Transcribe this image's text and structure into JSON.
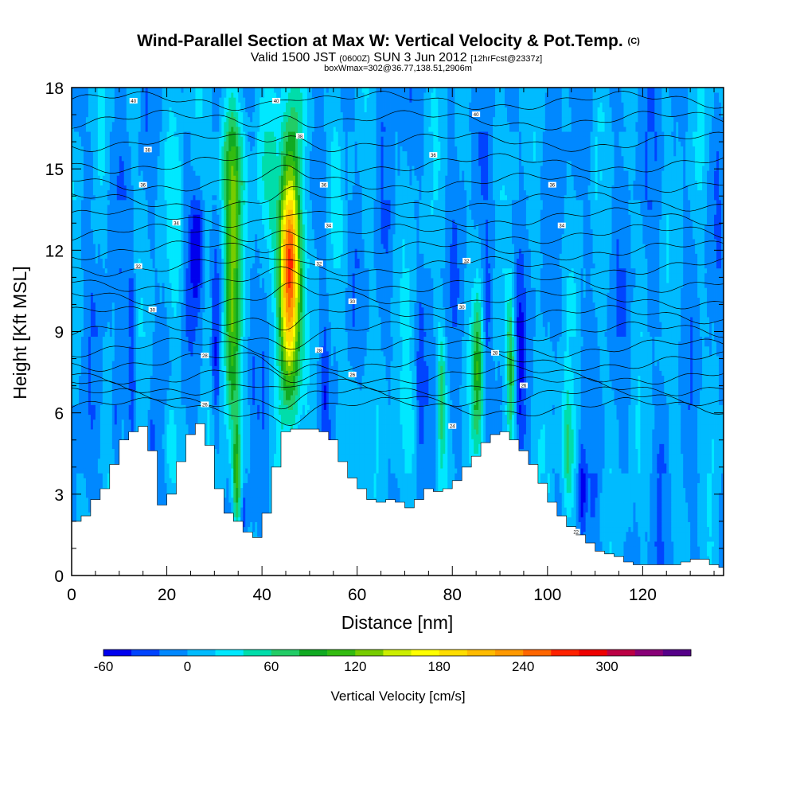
{
  "chart_data": {
    "type": "heatmap",
    "title_main": "Wind-Parallel Section at Max W: Vertical Velocity & Pot.Temp.",
    "title_mark": "(C)",
    "subtitle": {
      "valid_a": "Valid 1500 JST",
      "valid_z": "(0600Z)",
      "valid_b": "SUN 3 Jun 2012",
      "fcst": "[12hrFcst@2337z]",
      "box": "boxWmax=302@36.77,138.51,2906m"
    },
    "xlabel": "Distance [nm]",
    "ylabel": "Height [Kft MSL]",
    "xlim": [
      0,
      137
    ],
    "ylim": [
      0,
      18
    ],
    "xticks": [
      0,
      20,
      40,
      60,
      80,
      100,
      120
    ],
    "yticks": [
      0,
      3,
      6,
      9,
      12,
      15,
      18
    ],
    "colorbar": {
      "label": "Vertical Velocity [cm/s]",
      "ticks": [
        -60,
        0,
        60,
        120,
        180,
        240,
        300
      ],
      "levels": [
        -60,
        -40,
        -20,
        0,
        20,
        40,
        60,
        80,
        100,
        120,
        140,
        160,
        180,
        200,
        220,
        240,
        260,
        280,
        300,
        320,
        340
      ],
      "colors": [
        "#0000ee",
        "#0044ff",
        "#0088ff",
        "#00bbff",
        "#00e8ff",
        "#00ddaa",
        "#22cc66",
        "#11aa22",
        "#33bb11",
        "#77cc00",
        "#ccee00",
        "#ffff00",
        "#ffdd00",
        "#ffbb00",
        "#ff9900",
        "#ff6600",
        "#ff2200",
        "#ee0000",
        "#bb0044",
        "#880077",
        "#550088"
      ]
    },
    "background_w": 0,
    "terrain": {
      "x": [
        0,
        2,
        4,
        6,
        8,
        10,
        12,
        14,
        16,
        18,
        20,
        22,
        24,
        26,
        28,
        30,
        32,
        34,
        36,
        38,
        40,
        42,
        44,
        46,
        48,
        50,
        52,
        54,
        56,
        58,
        60,
        62,
        64,
        66,
        68,
        70,
        72,
        74,
        76,
        78,
        80,
        82,
        84,
        86,
        88,
        90,
        92,
        94,
        96,
        98,
        100,
        102,
        104,
        106,
        108,
        110,
        112,
        114,
        116,
        118,
        120,
        122,
        124,
        126,
        128,
        130,
        132,
        134,
        136
      ],
      "height_kft": [
        2.0,
        2.2,
        2.8,
        3.2,
        4.1,
        5.0,
        5.3,
        5.5,
        4.6,
        2.6,
        3.0,
        4.2,
        5.2,
        5.6,
        4.8,
        3.2,
        2.3,
        2.0,
        1.6,
        1.4,
        2.3,
        4.0,
        5.3,
        5.4,
        5.4,
        5.4,
        5.3,
        5.0,
        4.2,
        3.6,
        3.2,
        2.8,
        2.7,
        2.8,
        2.7,
        2.5,
        2.8,
        3.2,
        3.1,
        3.2,
        3.5,
        4.0,
        4.4,
        4.9,
        5.2,
        5.3,
        5.0,
        4.6,
        4.1,
        3.4,
        2.7,
        2.2,
        1.8,
        1.5,
        1.2,
        0.9,
        0.8,
        0.7,
        0.5,
        0.4,
        0.4,
        0.4,
        0.4,
        0.4,
        0.5,
        0.6,
        0.6,
        0.4,
        0.3
      ]
    },
    "w_features": [
      {
        "x": 45.5,
        "z": 11.2,
        "peak": 290,
        "sx": 1.5,
        "sz": 3.0
      },
      {
        "x": 33.5,
        "z": 10.5,
        "peak": 110,
        "sx": 1.2,
        "sz": 4.5
      },
      {
        "x": 33.0,
        "z": 15.0,
        "peak": 55,
        "sx": 2.5,
        "sz": 1.5
      },
      {
        "x": 48.0,
        "z": 17.0,
        "peak": 30,
        "sx": 3.0,
        "sz": 1.2
      },
      {
        "x": 34.5,
        "z": 3.6,
        "peak": 90,
        "sx": 0.6,
        "sz": 1.5
      },
      {
        "x": 85.0,
        "z": 7.5,
        "peak": 80,
        "sx": 0.9,
        "sz": 2.0
      },
      {
        "x": 92.0,
        "z": 7.5,
        "peak": 90,
        "sx": 0.6,
        "sz": 1.8
      },
      {
        "x": 77.5,
        "z": 6.5,
        "peak": 70,
        "sx": 0.6,
        "sz": 1.8
      },
      {
        "x": 104.0,
        "z": 4.2,
        "peak": 65,
        "sx": 0.9,
        "sz": 1.8
      },
      {
        "x": 20.0,
        "z": 4.8,
        "peak": 40,
        "sx": 1.0,
        "sz": 1.2
      },
      {
        "x": 59.0,
        "z": 6.0,
        "peak": 30,
        "sx": 1.5,
        "sz": 1.5
      },
      {
        "x": 70.0,
        "z": 5.0,
        "peak": 25,
        "sx": 2.0,
        "sz": 2.0
      },
      {
        "x": 41.0,
        "z": 14.5,
        "peak": 25,
        "sx": 1.5,
        "sz": 2.0
      },
      {
        "x": 22.0,
        "z": 12.0,
        "peak": 25,
        "sx": 1.0,
        "sz": 3.0
      },
      {
        "x": 26.0,
        "z": 12.0,
        "peak": -55,
        "sx": 0.9,
        "sz": 1.5
      },
      {
        "x": 30.0,
        "z": 8.5,
        "peak": -50,
        "sx": 0.6,
        "sz": 2.5
      },
      {
        "x": 36.0,
        "z": 2.3,
        "peak": -45,
        "sx": 0.5,
        "sz": 0.7
      },
      {
        "x": 12.5,
        "z": 7.5,
        "peak": -45,
        "sx": 0.5,
        "sz": 2.5
      },
      {
        "x": 9.0,
        "z": 5.5,
        "peak": -35,
        "sx": 0.6,
        "sz": 1.5
      },
      {
        "x": 16.5,
        "z": 4.5,
        "peak": -35,
        "sx": 0.5,
        "sz": 1.2
      },
      {
        "x": 94.0,
        "z": 8.0,
        "peak": -40,
        "sx": 0.6,
        "sz": 2.0
      },
      {
        "x": 107.0,
        "z": 3.0,
        "peak": -50,
        "sx": 0.6,
        "sz": 1.2
      },
      {
        "x": 87.0,
        "z": 10.0,
        "peak": -35,
        "sx": 0.6,
        "sz": 2.0
      },
      {
        "x": 53.0,
        "z": 7.0,
        "peak": -30,
        "sx": 0.6,
        "sz": 2.0
      },
      {
        "x": 73.0,
        "z": 7.0,
        "peak": -30,
        "sx": 0.5,
        "sz": 2.0
      }
    ],
    "theta_lines_kft": [
      6.2,
      6.6,
      7.0,
      7.4,
      7.9,
      8.4,
      9.0,
      9.6,
      10.2,
      10.8,
      11.4,
      12.0,
      12.6,
      13.2,
      13.8,
      14.5,
      15.2,
      16.0,
      16.8,
      17.5
    ],
    "contour_labels": [
      {
        "x": 13,
        "z": 17.5,
        "text": "40"
      },
      {
        "x": 43,
        "z": 17.5,
        "text": "40"
      },
      {
        "x": 85,
        "z": 17.0,
        "text": "40"
      },
      {
        "x": 16,
        "z": 15.7,
        "text": "38"
      },
      {
        "x": 48,
        "z": 16.2,
        "text": "38"
      },
      {
        "x": 76,
        "z": 15.5,
        "text": "36"
      },
      {
        "x": 15,
        "z": 14.4,
        "text": "36"
      },
      {
        "x": 53,
        "z": 14.4,
        "text": "36"
      },
      {
        "x": 101,
        "z": 14.4,
        "text": "36"
      },
      {
        "x": 22,
        "z": 13.0,
        "text": "34"
      },
      {
        "x": 54,
        "z": 12.9,
        "text": "34"
      },
      {
        "x": 103,
        "z": 12.9,
        "text": "34"
      },
      {
        "x": 14,
        "z": 11.4,
        "text": "32"
      },
      {
        "x": 52,
        "z": 11.5,
        "text": "32"
      },
      {
        "x": 83,
        "z": 11.6,
        "text": "32"
      },
      {
        "x": 17,
        "z": 9.8,
        "text": "30"
      },
      {
        "x": 59,
        "z": 10.1,
        "text": "30"
      },
      {
        "x": 82,
        "z": 9.9,
        "text": "30"
      },
      {
        "x": 28,
        "z": 8.1,
        "text": "28"
      },
      {
        "x": 52,
        "z": 8.3,
        "text": "28"
      },
      {
        "x": 89,
        "z": 8.2,
        "text": "28"
      },
      {
        "x": 59,
        "z": 7.4,
        "text": "26"
      },
      {
        "x": 95,
        "z": 7.0,
        "text": "26"
      },
      {
        "x": 28,
        "z": 6.3,
        "text": "26"
      },
      {
        "x": 80,
        "z": 5.5,
        "text": "24"
      },
      {
        "x": 106,
        "z": 1.6,
        "text": "22"
      }
    ]
  }
}
